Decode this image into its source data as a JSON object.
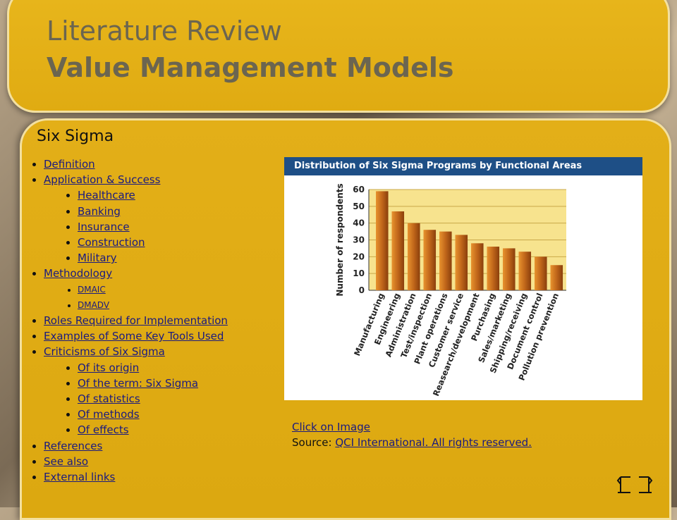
{
  "header": {
    "title_line1": "Literature Review",
    "title_line2": "Value Management Models"
  },
  "section_title": "Six Sigma",
  "menu": {
    "definition": "Definition",
    "application": "Application & Success",
    "application_items": [
      "Healthcare",
      "Banking",
      "Insurance",
      "Construction",
      "Military"
    ],
    "methodology": "Methodology",
    "methodology_items": [
      "DMAIC",
      "DMADV"
    ],
    "roles": "Roles Required for Implementation",
    "tools": "Examples of Some Key Tools Used",
    "criticisms": "Criticisms of Six Sigma",
    "criticism_items": [
      "Of its origin",
      "Of the term: Six Sigma",
      "Of statistics",
      "Of methods",
      "Of effects"
    ],
    "references": "References",
    "see_also": "See also",
    "external": "External links"
  },
  "caption": {
    "click": "Click on Image",
    "source_label": "Source:",
    "source_link": "QCI International. All rights reserved."
  },
  "chart_data": {
    "type": "bar",
    "title": "Distribution of Six Sigma Programs by Functional Areas",
    "ylabel": "Number of respondents",
    "xlabel": "",
    "ylim": [
      0,
      60
    ],
    "yticks": [
      0,
      10,
      20,
      30,
      40,
      50,
      60
    ],
    "categories": [
      "Manufacturing",
      "Engineering",
      "Administration",
      "Test/inspection",
      "Plant operations",
      "Customer service",
      "Reasearch/development",
      "Purchasing",
      "Sales/marketing",
      "Shipping/receiving",
      "Document control",
      "Pollution prevention"
    ],
    "values": [
      59,
      47,
      40,
      36,
      35,
      33,
      28,
      26,
      25,
      23,
      20,
      15
    ],
    "colors": {
      "header_bg": "#1e4f86",
      "bar": "#c0661a",
      "plot_bg": "#f7e38e"
    }
  },
  "nav": {
    "back_icon": "arrow-left-icon",
    "forward_icon": "arrow-right-icon"
  }
}
